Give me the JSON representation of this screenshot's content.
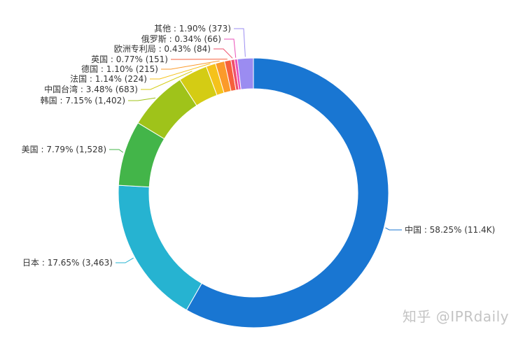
{
  "chart_data": {
    "type": "pie",
    "variant": "donut",
    "title": "",
    "slices": [
      {
        "name": "中国",
        "percent": 58.25,
        "count": "11.4K",
        "color": "#1976d2"
      },
      {
        "name": "日本",
        "percent": 17.65,
        "count": "3,463",
        "color": "#26b3d1"
      },
      {
        "name": "美国",
        "percent": 7.79,
        "count": "1,528",
        "color": "#43b549"
      },
      {
        "name": "韩国",
        "percent": 7.15,
        "count": "1,402",
        "color": "#9fc31a"
      },
      {
        "name": "中国台湾",
        "percent": 3.48,
        "count": "683",
        "color": "#d4cc14"
      },
      {
        "name": "法国",
        "percent": 1.14,
        "count": "224",
        "color": "#f5c21b"
      },
      {
        "name": "德国",
        "percent": 1.1,
        "count": "215",
        "color": "#fb9a2a"
      },
      {
        "name": "英国",
        "percent": 0.77,
        "count": "151",
        "color": "#f6603c"
      },
      {
        "name": "欧洲专利局",
        "percent": 0.43,
        "count": "84",
        "color": "#ef4f6b"
      },
      {
        "name": "俄罗斯",
        "percent": 0.34,
        "count": "66",
        "color": "#e94fb8"
      },
      {
        "name": "其他",
        "percent": 1.9,
        "count": "373",
        "color": "#9b8cf1"
      }
    ],
    "legend": "none"
  },
  "watermark": "知乎 @IPRdaily"
}
